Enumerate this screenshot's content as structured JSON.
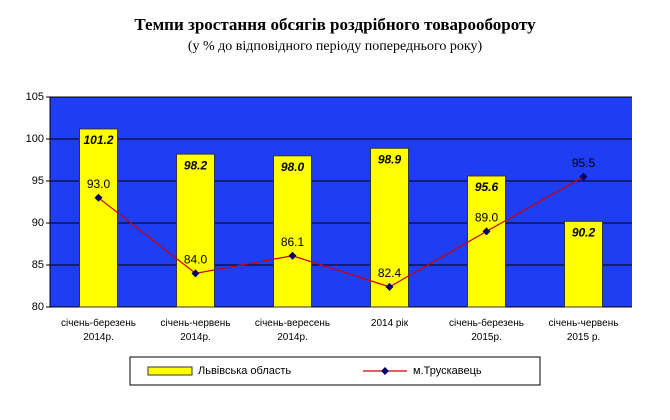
{
  "chart_data": {
    "type": "bar",
    "title": "Темпи зростання обсягів роздрібного товарообороту",
    "subtitle": "(у % до відповідного періоду попереднього року)",
    "categories": [
      "січень-березень\n2014р.",
      "січень-червень\n2014р.",
      "січень-вересень\n2014р.",
      "2014 рік",
      "січень-березень\n2015р.",
      "січень-червень\n2015 р."
    ],
    "series": [
      {
        "name": "Львівська область",
        "type": "bar",
        "color": "#ffff00",
        "values": [
          101.2,
          98.2,
          98.0,
          98.9,
          95.6,
          90.2
        ],
        "value_labels": [
          "101.2",
          "98.2",
          "98.0",
          "98.9",
          "95.6",
          "90.2"
        ]
      },
      {
        "name": "м.Трускавець",
        "type": "line",
        "color": "#cc0000",
        "marker_color": "#000066",
        "values": [
          93.0,
          84.0,
          86.1,
          82.4,
          89.0,
          95.5
        ],
        "value_labels": [
          "93.0",
          "84.0",
          "86.1",
          "82.4",
          "89.0",
          "95.5"
        ]
      }
    ],
    "ylim": [
      80,
      105
    ],
    "yticks": [
      80,
      85,
      90,
      95,
      100,
      105
    ],
    "grid": true,
    "plot_background": "#1f3df2"
  }
}
